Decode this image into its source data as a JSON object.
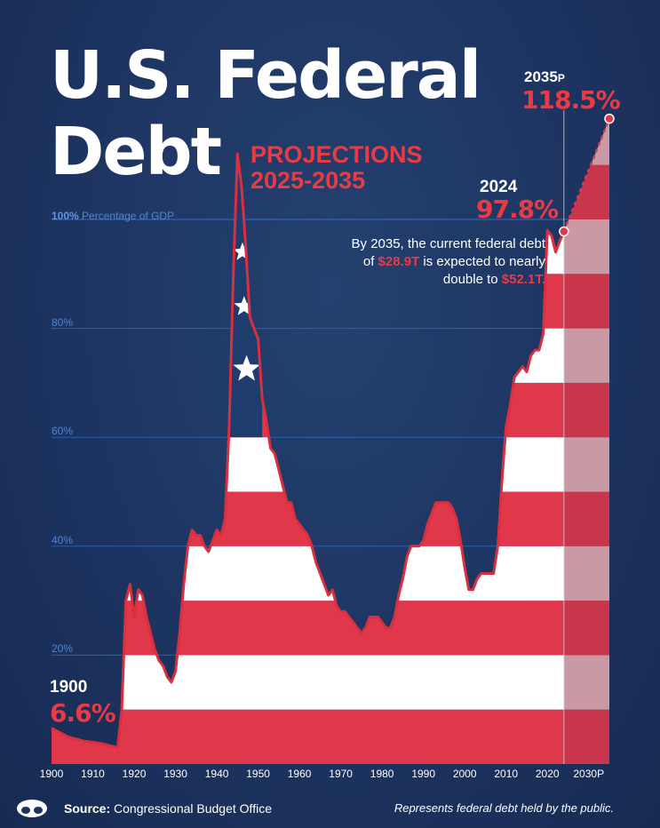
{
  "title_line1": "U.S. Federal",
  "title_line2": "Debt",
  "subtitle_line1": "PROJECTIONS",
  "subtitle_line2": "2025-2035",
  "grid_label_100_bold": "100%",
  "grid_label_100_text": "Percentage of GDP",
  "callouts": {
    "c2035": {
      "year": "2035",
      "suffix": "P",
      "value": "118.5%"
    },
    "c2024": {
      "year": "2024",
      "value": "97.8%"
    },
    "c1900": {
      "year": "1900",
      "value": "6.6%"
    }
  },
  "note": {
    "part1": "By 2035, the current federal debt of ",
    "hl1": "$28.9T",
    "part2": " is expected to nearly double to ",
    "hl2": "$52.1T."
  },
  "source_label": "Source:",
  "source_value": "Congressional Budget Office",
  "disclaimer": "Represents federal debt held by the public.",
  "colors": {
    "background": "#1d3461",
    "red": "#e0374a",
    "stripe_light": "#ffffff",
    "projection_red": "#c9354a",
    "projection_light": "#c99aa4",
    "accent_red": "#ea3a43",
    "grid": "#2c65c4"
  },
  "chart_data": {
    "type": "area",
    "x_label": "",
    "y_label": "Percentage of GDP",
    "x_ticks": [
      "1900",
      "1910",
      "1920",
      "1930",
      "1940",
      "1950",
      "1960",
      "1970",
      "1980",
      "1990",
      "2000",
      "2010",
      "2020",
      "2030P"
    ],
    "y_ticks": [
      "20%",
      "40%",
      "60%",
      "80%"
    ],
    "xlim": [
      1900,
      2035
    ],
    "ylim": [
      0,
      130
    ],
    "historical": {
      "x": [
        1900,
        1902,
        1904,
        1906,
        1908,
        1910,
        1912,
        1914,
        1916,
        1917,
        1918,
        1919,
        1920,
        1921,
        1922,
        1923,
        1924,
        1925,
        1926,
        1927,
        1928,
        1929,
        1930,
        1931,
        1932,
        1933,
        1934,
        1935,
        1936,
        1937,
        1938,
        1939,
        1940,
        1941,
        1942,
        1943,
        1944,
        1945,
        1946,
        1947,
        1948,
        1949,
        1950,
        1951,
        1952,
        1953,
        1954,
        1955,
        1956,
        1957,
        1958,
        1959,
        1960,
        1961,
        1962,
        1963,
        1964,
        1965,
        1966,
        1967,
        1968,
        1969,
        1970,
        1971,
        1972,
        1973,
        1974,
        1975,
        1976,
        1977,
        1978,
        1979,
        1980,
        1981,
        1982,
        1983,
        1984,
        1985,
        1986,
        1987,
        1988,
        1989,
        1990,
        1991,
        1992,
        1993,
        1994,
        1995,
        1996,
        1997,
        1998,
        1999,
        2000,
        2001,
        2002,
        2003,
        2004,
        2005,
        2006,
        2007,
        2008,
        2009,
        2010,
        2011,
        2012,
        2013,
        2014,
        2015,
        2016,
        2017,
        2018,
        2019,
        2020,
        2021,
        2022,
        2023,
        2024
      ],
      "values": [
        6.6,
        5.8,
        5.0,
        4.6,
        4.2,
        4.0,
        3.8,
        3.4,
        3.0,
        10,
        30,
        33,
        27,
        32,
        31,
        27,
        24,
        21,
        19,
        18,
        16,
        15,
        17,
        24,
        33,
        40,
        43,
        42,
        42,
        40,
        39,
        41,
        43,
        42,
        45,
        62,
        90,
        112,
        106,
        95,
        82,
        80,
        78,
        67,
        63,
        58,
        57,
        54,
        51,
        48,
        48,
        45,
        44,
        43,
        42,
        40,
        37,
        35,
        33,
        31,
        32,
        29,
        28,
        28,
        27,
        26,
        25,
        24,
        25,
        27,
        27,
        27,
        26,
        25,
        25,
        27,
        31,
        34,
        38,
        40,
        40,
        40,
        41,
        44,
        46,
        48,
        48,
        48,
        48,
        47,
        45,
        41,
        36,
        32,
        32,
        34,
        35,
        35,
        35,
        35,
        40,
        52,
        62,
        66,
        71,
        72,
        73,
        72,
        75,
        76,
        76,
        79,
        98,
        97,
        94,
        96,
        97.8
      ]
    },
    "projection": {
      "x": [
        2024,
        2035
      ],
      "values": [
        97.8,
        118.5
      ],
      "label": "P"
    }
  }
}
